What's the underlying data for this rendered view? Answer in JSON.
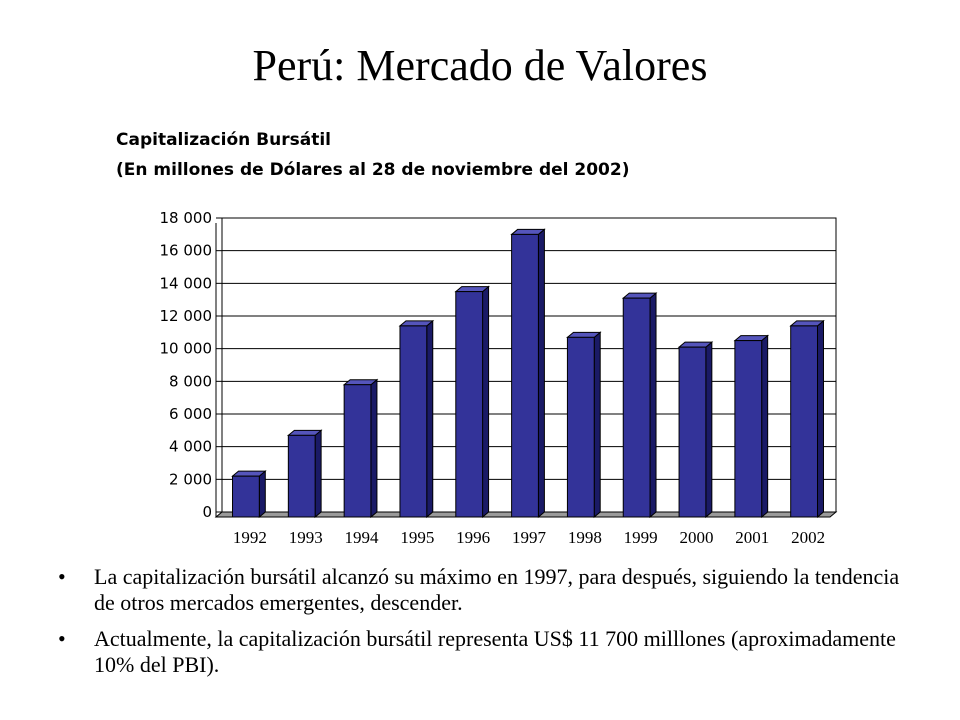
{
  "slide": {
    "title": "Perú: Mercado de Valores"
  },
  "chart_data": {
    "type": "bar",
    "title": "Capitalización Bursátil",
    "subtitle": "(En millones de Dólares al 28 de noviembre del 2002)",
    "categories": [
      "1992",
      "1993",
      "1994",
      "1995",
      "1996",
      "1997",
      "1998",
      "1999",
      "2000",
      "2001",
      "2002"
    ],
    "values": [
      2500,
      5000,
      8100,
      11700,
      13800,
      17300,
      11000,
      13400,
      10400,
      10800,
      11700
    ],
    "ylim": [
      0,
      18000
    ],
    "yticks": [
      0,
      2000,
      4000,
      6000,
      8000,
      10000,
      12000,
      14000,
      16000,
      18000
    ],
    "ytick_labels": [
      "0",
      "2 000",
      "4 000",
      "6 000",
      "8 000",
      "10 000",
      "12 000",
      "14 000",
      "16 000",
      "18 000"
    ],
    "grid": true,
    "bar_color": "#333399",
    "xlabel": "",
    "ylabel": ""
  },
  "bullets": [
    "La capitalización bursátil alcanzó su máximo en 1997, para después, siguiendo la tendencia de otros mercados emergentes, descender.",
    "Actualmente, la capitalización bursátil representa US$ 11 700 milllones (aproximadamente 10% del PBI)."
  ],
  "bullet_symbol": "•"
}
